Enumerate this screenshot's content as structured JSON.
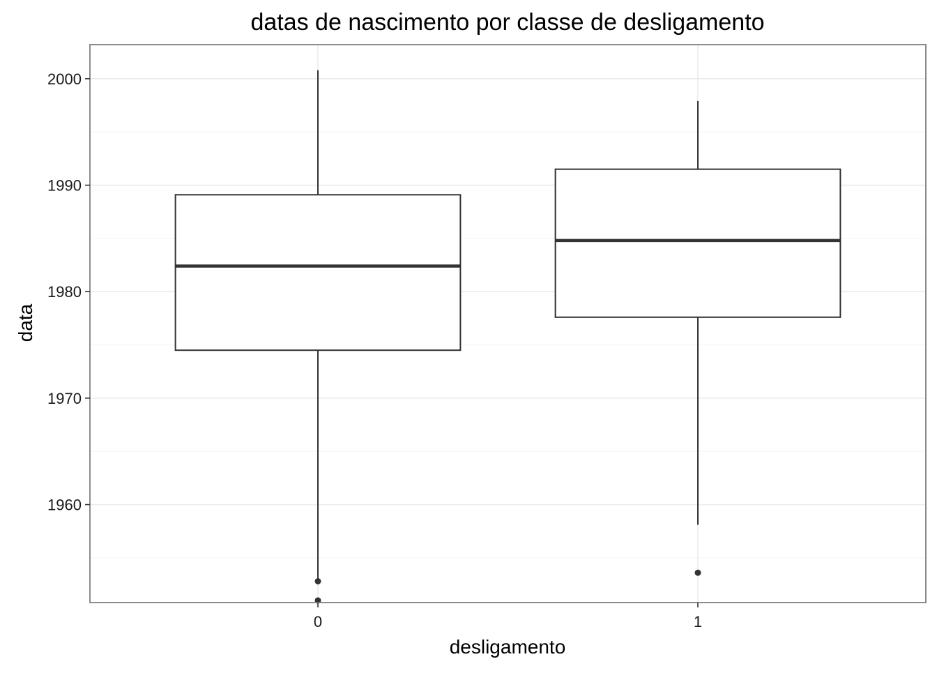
{
  "chart_data": {
    "type": "boxplot",
    "title": "datas de nascimento por classe de desligamento",
    "xlabel": "desligamento",
    "ylabel": "data",
    "categories": [
      "0",
      "1"
    ],
    "y_ticks": [
      "1960",
      "1970",
      "1980",
      "1990",
      "2000"
    ],
    "y_tick_values": [
      1960,
      1970,
      1980,
      1990,
      2000
    ],
    "ylim": [
      1950.8,
      2003.2
    ],
    "grid": true,
    "boxes": [
      {
        "category": "0",
        "whisker_low": 1952.9,
        "q1": 1974.5,
        "median": 1982.4,
        "q3": 1989.1,
        "whisker_high": 2000.8,
        "outliers": [
          1952.8,
          1951.0
        ]
      },
      {
        "category": "1",
        "whisker_low": 1958.1,
        "q1": 1977.6,
        "median": 1984.8,
        "q3": 1991.5,
        "whisker_high": 1997.9,
        "outliers": [
          1953.6
        ]
      }
    ],
    "colors": {
      "panel_border": "#7f7f7f",
      "grid_major": "#ebebeb",
      "grid_minor": "#f5f5f5",
      "box_line": "#333333",
      "outlier": "#333333"
    }
  }
}
